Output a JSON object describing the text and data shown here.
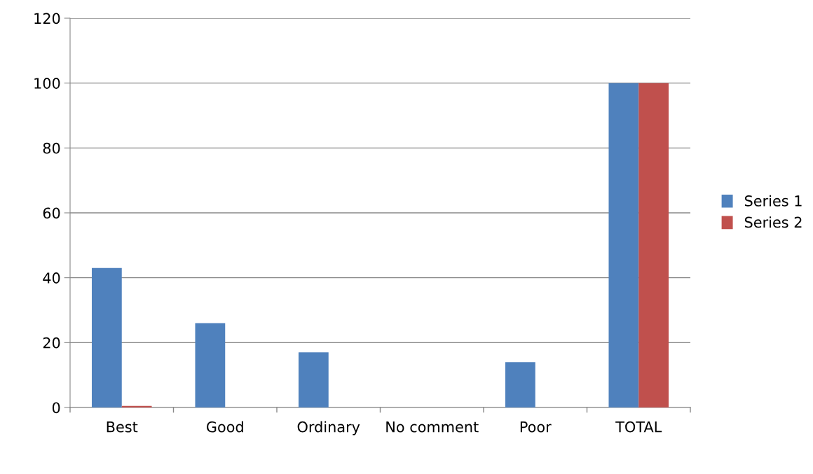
{
  "chart_data": {
    "type": "bar",
    "categories": [
      "Best",
      "Good",
      "Ordinary",
      "No comment",
      "Poor",
      "TOTAL"
    ],
    "series": [
      {
        "name": "Series 1",
        "color": "#4f81bd",
        "values": [
          43,
          26,
          17,
          0,
          14,
          100
        ]
      },
      {
        "name": "Series 2",
        "color": "#c0504d",
        "values": [
          0.5,
          0,
          0,
          0,
          0,
          100
        ]
      }
    ],
    "ylim": [
      0,
      120
    ],
    "yticks": [
      0,
      20,
      40,
      60,
      80,
      100,
      120
    ],
    "grid": "y",
    "legend": "right"
  }
}
